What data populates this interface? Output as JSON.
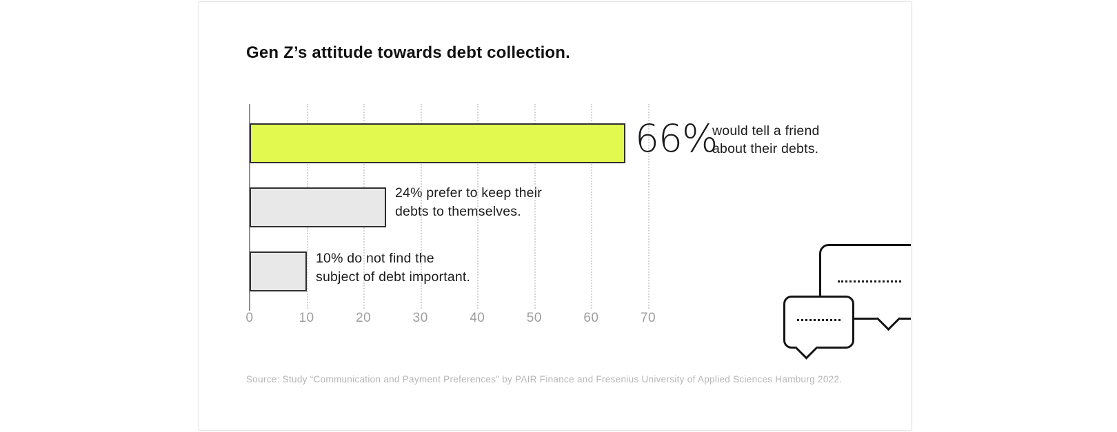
{
  "card": {
    "title": "Gen Z’s attitude towards debt collection.",
    "source": "Source: Study “Communication and Payment Preferences” by PAIR Finance and Fresenius University of Applied Sciences Hamburg 2022."
  },
  "chart_data": {
    "type": "bar",
    "orientation": "horizontal",
    "title": "Gen Z’s attitude towards debt collection.",
    "categories": [
      "would tell a friend about their debts.",
      "prefer to keep their debts to themselves.",
      "do not find the subject of debt important."
    ],
    "values": [
      66,
      24,
      10
    ],
    "xlim": [
      0,
      70
    ],
    "x_ticks": [
      "0",
      "10",
      "20",
      "30",
      "40",
      "50",
      "60",
      "70"
    ],
    "grid": "vertical-dotted",
    "legend": "none",
    "bar_colors": [
      "#e2f94f",
      "#e8e8e8",
      "#e8e8e8"
    ],
    "bar_border_color": "#2f2f2f"
  },
  "annotations": {
    "bar1_big": "66%",
    "bar1_lines": {
      "0": "would tell a friend",
      "1": "about their debts."
    },
    "bar2_lines": {
      "0": "24% prefer to keep their",
      "1": "debts to themselves."
    },
    "bar3_lines": {
      "0": "10% do not find the",
      "1": "subject of debt important."
    }
  },
  "colors": {
    "highlight": "#e2f94f",
    "bar_gray": "#e8e8e8",
    "bar_border": "#2f2f2f",
    "axis_line": "#8f8f8f",
    "gridline": "#d4d4d4",
    "tick_text": "#9e9e9e",
    "title_text": "#111111",
    "annotation_text": "#1b1b1b",
    "source_text": "#b5b5b5",
    "bubble_border": "#141414"
  },
  "decoration": {
    "bubble_large": "speech-bubble with dotted placeholder text, clipped by card right edge",
    "bubble_small": "small speech-bubble with dotted placeholder text"
  }
}
